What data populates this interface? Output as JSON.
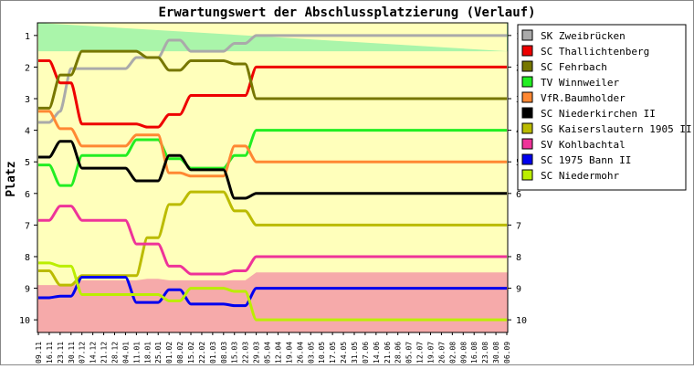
{
  "chart_data": {
    "type": "line",
    "title": "Erwartungswert der Abschlussplatzierung (Verlauf)",
    "ylabel": "Platz",
    "xlabel": "",
    "y_range": [
      0.6,
      10.4
    ],
    "y_inverted": true,
    "y_ticks": [
      "1",
      "2",
      "3",
      "4",
      "5",
      "6",
      "7",
      "8",
      "9",
      "10"
    ],
    "grid": false,
    "legend_position": "right",
    "categories": [
      "09.11",
      "16.11",
      "23.11",
      "30.11",
      "07.12",
      "14.12",
      "21.12",
      "28.12",
      "04.01",
      "11.01",
      "18.01",
      "25.01",
      "01.02",
      "08.02",
      "15.02",
      "22.02",
      "01.03",
      "08.03",
      "15.03",
      "22.03",
      "29.03",
      "05.04",
      "12.04",
      "19.04",
      "26.04",
      "03.05",
      "10.05",
      "17.05",
      "24.05",
      "31.05",
      "07.06",
      "14.06",
      "21.06",
      "28.06",
      "05.07",
      "12.07",
      "19.07",
      "26.07",
      "02.08",
      "09.08",
      "16.08",
      "23.08",
      "30.08",
      "06.09"
    ],
    "zones": [
      {
        "name": "promotion",
        "color": "#aaf5aa",
        "lower": [
          1.5,
          1.5,
          1.5,
          1.5,
          1.5,
          1.5,
          1.5,
          1.5,
          1.5,
          1.5,
          1.5,
          1.5,
          1.5,
          1.5,
          1.5,
          1.5,
          1.5,
          1.5,
          1.5,
          1.5,
          1.5,
          1.5,
          1.5,
          1.5,
          1.5,
          1.5,
          1.5,
          1.5,
          1.5,
          1.5,
          1.5,
          1.5,
          1.5,
          1.5,
          1.5,
          1.5,
          1.5,
          1.5,
          1.5,
          1.5,
          1.5,
          1.5,
          1.5,
          1.5
        ]
      },
      {
        "name": "relegation",
        "color": "#f6aaaa",
        "upper": [
          8.9,
          8.9,
          8.9,
          8.9,
          8.75,
          8.75,
          8.75,
          8.75,
          8.75,
          8.75,
          8.7,
          8.7,
          8.75,
          8.75,
          8.75,
          8.75,
          8.75,
          8.75,
          8.75,
          8.75,
          8.5,
          8.5,
          8.5,
          8.5,
          8.5,
          8.5,
          8.5,
          8.5,
          8.5,
          8.5,
          8.5,
          8.5,
          8.5,
          8.5,
          8.5,
          8.5,
          8.5,
          8.5,
          8.5,
          8.5,
          8.5,
          8.5,
          8.5,
          8.5
        ]
      }
    ],
    "middle_zone_color": "#ffffbb",
    "series": [
      {
        "name": "SK Zweibrücken",
        "color": "#aaaaaa",
        "values": [
          3.75,
          3.75,
          3.4,
          2.05,
          2.05,
          2.05,
          2.05,
          2.05,
          2.05,
          1.7,
          1.7,
          1.7,
          1.15,
          1.15,
          1.5,
          1.5,
          1.5,
          1.5,
          1.25,
          1.25,
          1.0,
          1.0,
          1.0,
          1.0,
          1.0,
          1.0,
          1.0,
          1.0,
          1.0,
          1.0,
          1.0,
          1.0,
          1.0,
          1.0,
          1.0,
          1.0,
          1.0,
          1.0,
          1.0,
          1.0,
          1.0,
          1.0,
          1.0,
          1.0
        ]
      },
      {
        "name": "SC Thallichtenberg",
        "color": "#ee0000",
        "values": [
          1.8,
          1.8,
          2.5,
          2.5,
          3.8,
          3.8,
          3.8,
          3.8,
          3.8,
          3.8,
          3.9,
          3.9,
          3.5,
          3.5,
          2.9,
          2.9,
          2.9,
          2.9,
          2.9,
          2.9,
          2.0,
          2.0,
          2.0,
          2.0,
          2.0,
          2.0,
          2.0,
          2.0,
          2.0,
          2.0,
          2.0,
          2.0,
          2.0,
          2.0,
          2.0,
          2.0,
          2.0,
          2.0,
          2.0,
          2.0,
          2.0,
          2.0,
          2.0,
          2.0
        ]
      },
      {
        "name": "SC Fehrbach",
        "color": "#777700",
        "values": [
          3.3,
          3.3,
          2.25,
          2.25,
          1.5,
          1.5,
          1.5,
          1.5,
          1.5,
          1.5,
          1.7,
          1.7,
          2.1,
          2.1,
          1.8,
          1.8,
          1.8,
          1.8,
          1.9,
          1.9,
          3.0,
          3.0,
          3.0,
          3.0,
          3.0,
          3.0,
          3.0,
          3.0,
          3.0,
          3.0,
          3.0,
          3.0,
          3.0,
          3.0,
          3.0,
          3.0,
          3.0,
          3.0,
          3.0,
          3.0,
          3.0,
          3.0,
          3.0,
          3.0
        ]
      },
      {
        "name": "TV Winnweiler",
        "color": "#22ee22",
        "values": [
          5.1,
          5.1,
          5.75,
          5.75,
          4.8,
          4.8,
          4.8,
          4.8,
          4.8,
          4.3,
          4.3,
          4.3,
          4.9,
          4.9,
          5.2,
          5.2,
          5.2,
          5.2,
          4.8,
          4.8,
          4.0,
          4.0,
          4.0,
          4.0,
          4.0,
          4.0,
          4.0,
          4.0,
          4.0,
          4.0,
          4.0,
          4.0,
          4.0,
          4.0,
          4.0,
          4.0,
          4.0,
          4.0,
          4.0,
          4.0,
          4.0,
          4.0,
          4.0,
          4.0
        ]
      },
      {
        "name": "VfR.Baumholder",
        "color": "#ff8833",
        "values": [
          3.4,
          3.4,
          3.95,
          3.95,
          4.5,
          4.5,
          4.5,
          4.5,
          4.5,
          4.15,
          4.15,
          4.15,
          5.35,
          5.35,
          5.45,
          5.45,
          5.45,
          5.45,
          4.5,
          4.5,
          5.0,
          5.0,
          5.0,
          5.0,
          5.0,
          5.0,
          5.0,
          5.0,
          5.0,
          5.0,
          5.0,
          5.0,
          5.0,
          5.0,
          5.0,
          5.0,
          5.0,
          5.0,
          5.0,
          5.0,
          5.0,
          5.0,
          5.0,
          5.0
        ]
      },
      {
        "name": "SC Niederkirchen II",
        "color": "#000000",
        "values": [
          4.85,
          4.85,
          4.35,
          4.35,
          5.2,
          5.2,
          5.2,
          5.2,
          5.2,
          5.6,
          5.6,
          5.6,
          4.8,
          4.8,
          5.25,
          5.25,
          5.25,
          5.25,
          6.15,
          6.15,
          6.0,
          6.0,
          6.0,
          6.0,
          6.0,
          6.0,
          6.0,
          6.0,
          6.0,
          6.0,
          6.0,
          6.0,
          6.0,
          6.0,
          6.0,
          6.0,
          6.0,
          6.0,
          6.0,
          6.0,
          6.0,
          6.0,
          6.0,
          6.0
        ]
      },
      {
        "name": "SG Kaiserslautern 1905 II",
        "color": "#bbbb00",
        "values": [
          8.45,
          8.45,
          8.9,
          8.9,
          8.6,
          8.6,
          8.6,
          8.6,
          8.6,
          8.6,
          7.4,
          7.4,
          6.35,
          6.35,
          5.95,
          5.95,
          5.95,
          5.95,
          6.55,
          6.55,
          7.0,
          7.0,
          7.0,
          7.0,
          7.0,
          7.0,
          7.0,
          7.0,
          7.0,
          7.0,
          7.0,
          7.0,
          7.0,
          7.0,
          7.0,
          7.0,
          7.0,
          7.0,
          7.0,
          7.0,
          7.0,
          7.0,
          7.0,
          7.0
        ]
      },
      {
        "name": "SV Kohlbachtal",
        "color": "#ee3399",
        "values": [
          6.85,
          6.85,
          6.4,
          6.4,
          6.85,
          6.85,
          6.85,
          6.85,
          6.85,
          7.6,
          7.6,
          7.6,
          8.3,
          8.3,
          8.55,
          8.55,
          8.55,
          8.55,
          8.45,
          8.45,
          8.0,
          8.0,
          8.0,
          8.0,
          8.0,
          8.0,
          8.0,
          8.0,
          8.0,
          8.0,
          8.0,
          8.0,
          8.0,
          8.0,
          8.0,
          8.0,
          8.0,
          8.0,
          8.0,
          8.0,
          8.0,
          8.0,
          8.0,
          8.0
        ]
      },
      {
        "name": "SC 1975 Bann II",
        "color": "#0000ee",
        "values": [
          9.3,
          9.3,
          9.25,
          9.25,
          8.65,
          8.65,
          8.65,
          8.65,
          8.65,
          9.45,
          9.45,
          9.45,
          9.05,
          9.05,
          9.5,
          9.5,
          9.5,
          9.5,
          9.55,
          9.55,
          9.0,
          9.0,
          9.0,
          9.0,
          9.0,
          9.0,
          9.0,
          9.0,
          9.0,
          9.0,
          9.0,
          9.0,
          9.0,
          9.0,
          9.0,
          9.0,
          9.0,
          9.0,
          9.0,
          9.0,
          9.0,
          9.0,
          9.0,
          9.0
        ]
      },
      {
        "name": "SC Niedermohr",
        "color": "#bbee00",
        "values": [
          8.2,
          8.2,
          8.3,
          8.3,
          9.2,
          9.2,
          9.2,
          9.2,
          9.2,
          9.2,
          9.2,
          9.2,
          9.4,
          9.4,
          9.0,
          9.0,
          9.0,
          9.0,
          9.1,
          9.1,
          10.0,
          10.0,
          10.0,
          10.0,
          10.0,
          10.0,
          10.0,
          10.0,
          10.0,
          10.0,
          10.0,
          10.0,
          10.0,
          10.0,
          10.0,
          10.0,
          10.0,
          10.0,
          10.0,
          10.0,
          10.0,
          10.0,
          10.0,
          10.0
        ]
      }
    ]
  }
}
